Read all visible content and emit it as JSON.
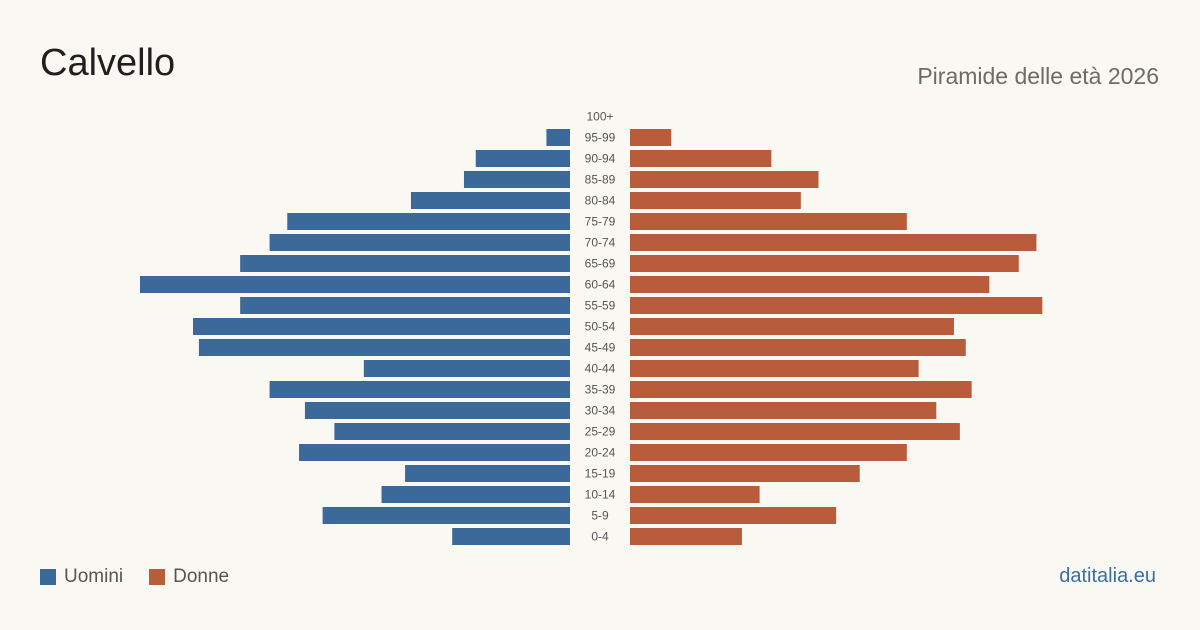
{
  "title": "Calvello",
  "subtitle": "Piramide delle età 2026",
  "source": "datitalia.eu",
  "colors": {
    "male": "#3b6a9a",
    "female": "#b85c3c"
  },
  "legend": [
    {
      "label": "Uomini",
      "color": "#3b6a9a"
    },
    {
      "label": "Donne",
      "color": "#b85c3c"
    }
  ],
  "chart_data": {
    "type": "bar",
    "orientation": "horizontal-pyramid",
    "categories": [
      "100+",
      "95-99",
      "90-94",
      "85-89",
      "80-84",
      "75-79",
      "70-74",
      "65-69",
      "60-64",
      "55-59",
      "50-54",
      "45-49",
      "40-44",
      "35-39",
      "30-34",
      "25-29",
      "20-24",
      "15-19",
      "10-14",
      "5-9",
      "0-4"
    ],
    "series": [
      {
        "name": "Uomini",
        "values": [
          0,
          4,
          16,
          18,
          27,
          48,
          51,
          56,
          73,
          56,
          64,
          63,
          35,
          51,
          45,
          40,
          46,
          28,
          32,
          42,
          20
        ]
      },
      {
        "name": "Donne",
        "values": [
          0,
          7,
          24,
          32,
          29,
          47,
          69,
          66,
          61,
          70,
          55,
          57,
          49,
          58,
          52,
          56,
          47,
          39,
          22,
          35,
          19
        ]
      }
    ],
    "xlim": [
      0,
      73
    ],
    "grid": false,
    "legend_position": "bottom-left"
  }
}
